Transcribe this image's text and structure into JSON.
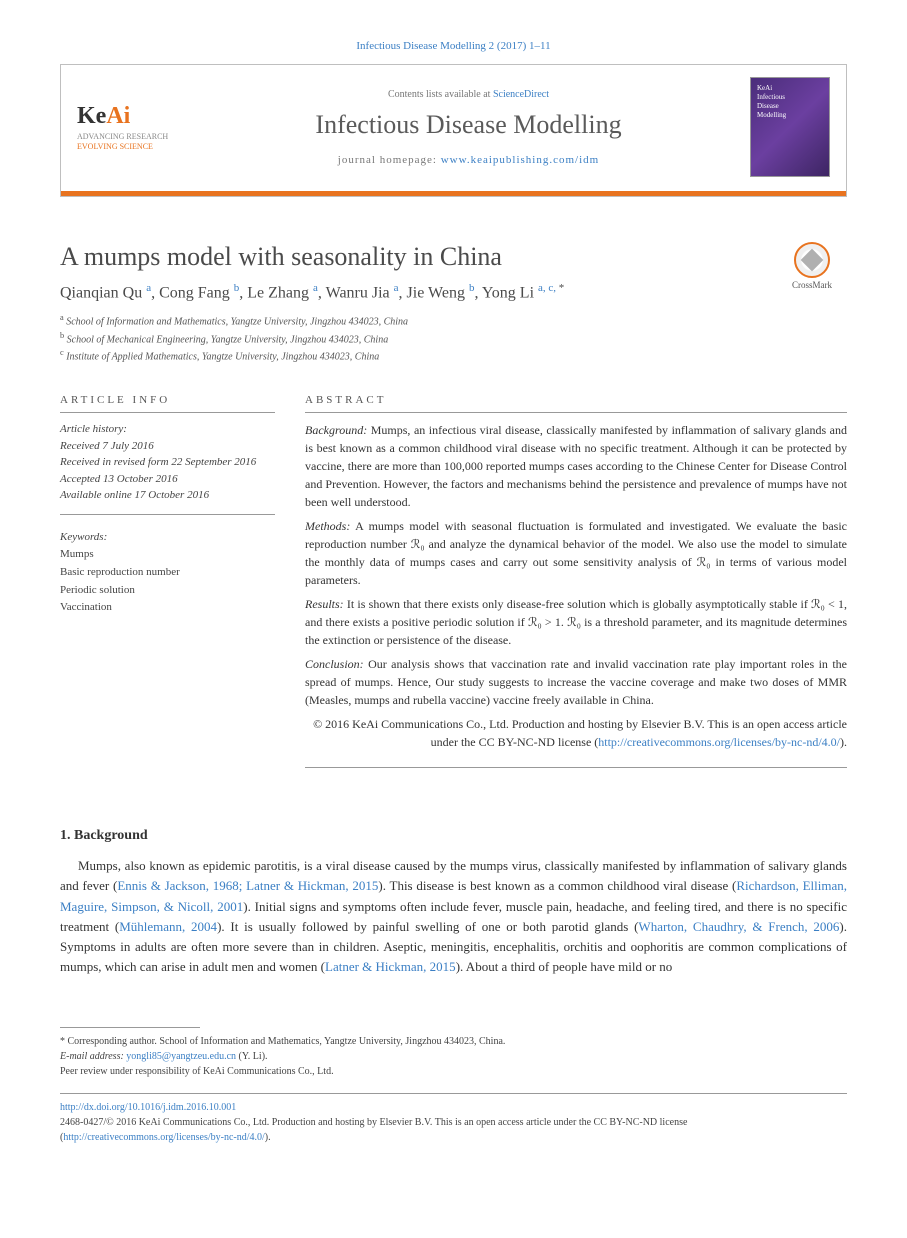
{
  "citation": "Infectious Disease Modelling 2 (2017) 1–11",
  "header": {
    "logo_main": "Ke",
    "logo_accent": "Ai",
    "tagline1": "ADVANCING RESEARCH",
    "tagline2": "EVOLVING SCIENCE",
    "contents_prefix": "Contents lists available at ",
    "contents_link": "ScienceDirect",
    "journal_name": "Infectious Disease Modelling",
    "homepage_prefix": "journal homepage: ",
    "homepage_url": "www.keaipublishing.com/idm"
  },
  "crossmark_label": "CrossMark",
  "title": "A mumps model with seasonality in China",
  "authors_html": "Qianqian Qu <sup>a</sup>, Cong Fang <sup>b</sup>, Le Zhang <sup>a</sup>, Wanru Jia <sup>a</sup>, Jie Weng <sup>b</sup>, Yong Li <sup>a, c, </sup><sup class=\"star\">*</sup>",
  "affiliations": [
    "a School of Information and Mathematics, Yangtze University, Jingzhou 434023, China",
    "b School of Mechanical Engineering, Yangtze University, Jingzhou 434023, China",
    "c Institute of Applied Mathematics, Yangtze University, Jingzhou 434023, China"
  ],
  "article_info": {
    "label": "ARTICLE INFO",
    "history_label": "Article history:",
    "received": "Received 7 July 2016",
    "revised": "Received in revised form 22 September 2016",
    "accepted": "Accepted 13 October 2016",
    "online": "Available online 17 October 2016"
  },
  "keywords": {
    "label": "Keywords:",
    "items": [
      "Mumps",
      "Basic reproduction number",
      "Periodic solution",
      "Vaccination"
    ]
  },
  "abstract": {
    "label": "ABSTRACT",
    "background_label": "Background:",
    "background": " Mumps, an infectious viral disease, classically manifested by inflammation of salivary glands and is best known as a common childhood viral disease with no specific treatment. Although it can be protected by vaccine, there are more than 100,000 reported mumps cases according to the Chinese Center for Disease Control and Prevention. However, the factors and mechanisms behind the persistence and prevalence of mumps have not been well understood.",
    "methods_label": "Methods:",
    "methods": " A mumps model with seasonal fluctuation is formulated and investigated. We evaluate the basic reproduction number ℛ₀ and analyze the dynamical behavior of the model. We also use the model to simulate the monthly data of mumps cases and carry out some sensitivity analysis of ℛ₀ in terms of various model parameters.",
    "results_label": "Results:",
    "results": " It is shown that there exists only disease-free solution which is globally asymptotically stable if ℛ₀ < 1, and there exists a positive periodic solution if ℛ₀ > 1. ℛ₀ is a threshold parameter, and its magnitude determines the extinction or persistence of the disease.",
    "conclusion_label": "Conclusion:",
    "conclusion": " Our analysis shows that vaccination rate and invalid vaccination rate play important roles in the spread of mumps. Hence, Our study suggests to increase the vaccine coverage and make two doses of MMR (Measles, mumps and rubella vaccine) vaccine freely available in China.",
    "copyright": "© 2016 KeAi Communications Co., Ltd. Production and hosting by Elsevier B.V. This is an open access article under the CC BY-NC-ND license (",
    "license_url": "http://creativecommons.org/licenses/by-nc-nd/4.0/",
    "copyright_close": ")."
  },
  "section1": {
    "heading": "1. Background",
    "text_html": "Mumps, also known as epidemic parotitis, is a viral disease caused by the mumps virus, classically manifested by inflammation of salivary glands and fever (<a href=\"#\">Ennis & Jackson, 1968; Latner & Hickman, 2015</a>). This disease is best known as a common childhood viral disease (<a href=\"#\">Richardson, Elliman, Maguire, Simpson, & Nicoll, 2001</a>). Initial signs and symptoms often include fever, muscle pain, headache, and feeling tired, and there is no specific treatment (<a href=\"#\">Mühlemann, 2004</a>). It is usually followed by painful swelling of one or both parotid glands (<a href=\"#\">Wharton, Chaudhry, & French, 2006</a>). Symptoms in adults are often more severe than in children. Aseptic, meningitis, encephalitis, orchitis and oophoritis are common complications of mumps, which can arise in adult men and women (<a href=\"#\">Latner & Hickman, 2015</a>). About a third of people have mild or no"
  },
  "footnotes": {
    "corr": "* Corresponding author. School of Information and Mathematics, Yangtze University, Jingzhou 434023, China.",
    "email_label": "E-mail address: ",
    "email": "yongli85@yangtzeu.edu.cn",
    "email_suffix": " (Y. Li).",
    "peer": "Peer review under responsibility of KeAi Communications Co., Ltd."
  },
  "footer": {
    "doi": "http://dx.doi.org/10.1016/j.idm.2016.10.001",
    "issn_line": "2468-0427/© 2016 KeAi Communications Co., Ltd. Production and hosting by Elsevier B.V. This is an open access article under the CC BY-NC-ND license (",
    "license_url": "http://creativecommons.org/licenses/by-nc-nd/4.0/",
    "close": ")."
  },
  "colors": {
    "link": "#3b7fc4",
    "accent": "#e8731f",
    "text": "#333333",
    "muted": "#777777",
    "border": "#999999"
  }
}
